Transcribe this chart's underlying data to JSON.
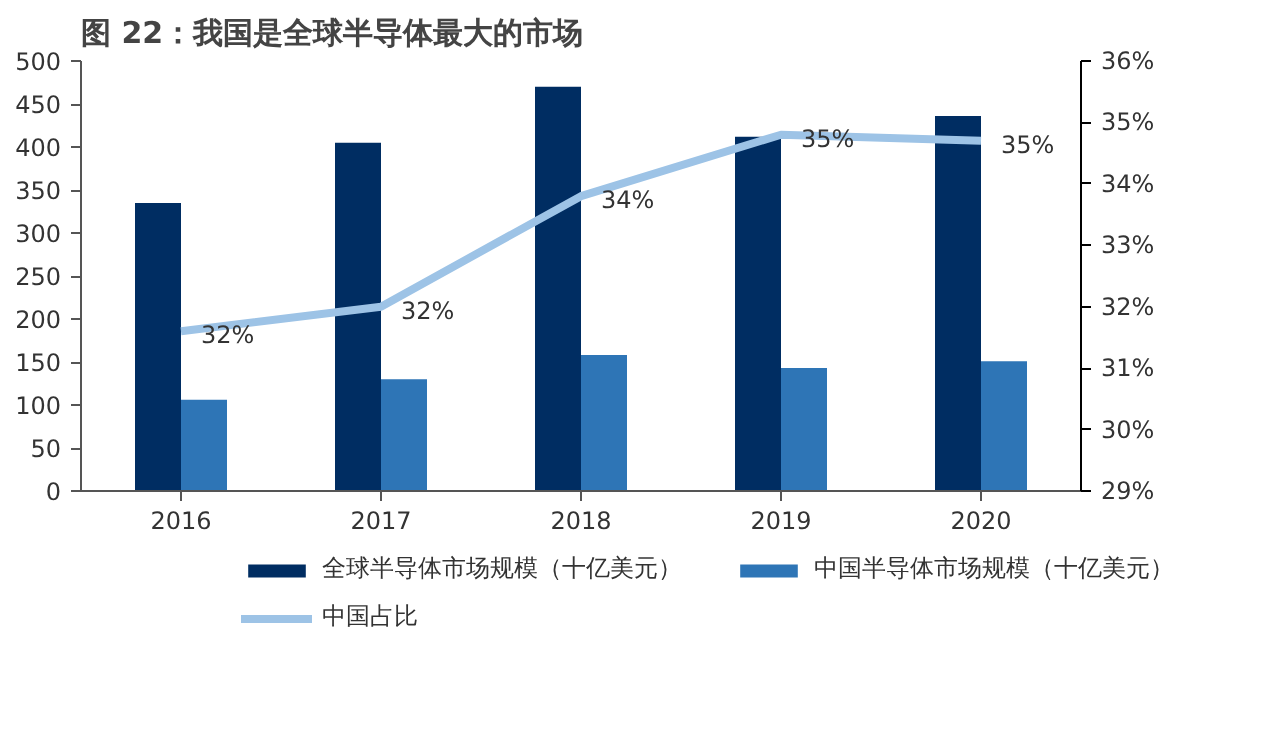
{
  "chart_data": {
    "type": "bar",
    "title": "图 22：我国是全球半导体最大的市场",
    "categories": [
      "2016",
      "2017",
      "2018",
      "2019",
      "2020"
    ],
    "series": [
      {
        "name": "全球半导体市场规模（十亿美元）",
        "color": "#002d62",
        "values": [
          335,
          405,
          470,
          412,
          436
        ]
      },
      {
        "name": "中国半导体市场规模（十亿美元）",
        "color": "#2e75b6",
        "values": [
          106,
          130,
          158,
          143,
          151
        ]
      },
      {
        "name": "中国占比",
        "type": "line",
        "axis": "y2",
        "color": "#9dc3e6",
        "values": [
          31.6,
          32.0,
          33.8,
          34.8,
          34.7
        ],
        "value_labels": [
          "32%",
          "32%",
          "34%",
          "35%",
          "35%"
        ]
      }
    ],
    "ylim": [
      0,
      500
    ],
    "yticks": [
      0,
      50,
      100,
      150,
      200,
      250,
      300,
      350,
      400,
      450,
      500
    ],
    "y2lim": [
      29,
      36
    ],
    "y2ticks": [
      {
        "value": 29,
        "label": "29%"
      },
      {
        "value": 30,
        "label": "30%"
      },
      {
        "value": 31,
        "label": "31%"
      },
      {
        "value": 32,
        "label": "32%"
      },
      {
        "value": 33,
        "label": "33%"
      },
      {
        "value": 34,
        "label": "34%"
      },
      {
        "value": 35,
        "label": "35%"
      },
      {
        "value": 36,
        "label": "36%"
      }
    ],
    "grid": false,
    "legend": "bottom",
    "line_style": "solid",
    "marker": "none"
  }
}
